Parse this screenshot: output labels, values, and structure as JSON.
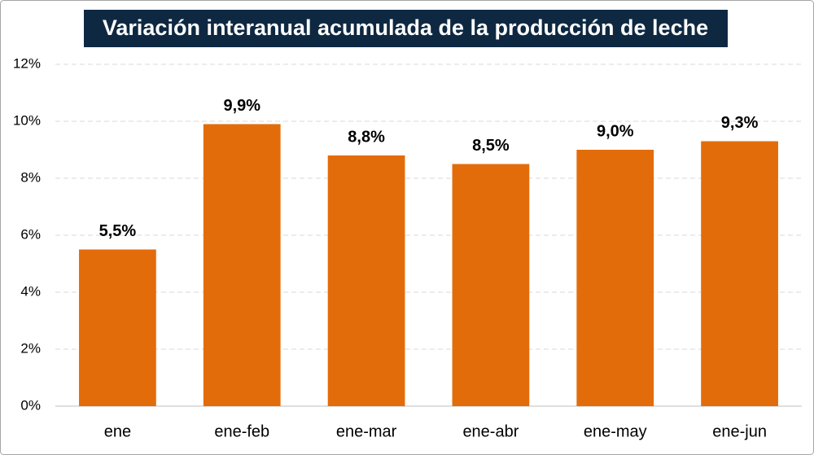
{
  "chart_data": {
    "type": "bar",
    "title": "Variación interanual acumulada de la producción de leche",
    "categories": [
      "ene",
      "ene-feb",
      "ene-mar",
      "ene-abr",
      "ene-may",
      "ene-jun"
    ],
    "values": [
      5.5,
      9.9,
      8.8,
      8.5,
      9.0,
      9.3
    ],
    "value_labels": [
      "5,5%",
      "9,9%",
      "8,8%",
      "8,5%",
      "9,0%",
      "9,3%"
    ],
    "color": "#e36c0a",
    "ylim": [
      0,
      12
    ],
    "yticks": [
      {
        "value": 0,
        "label": "0%"
      },
      {
        "value": 2,
        "label": "2%"
      },
      {
        "value": 4,
        "label": "4%"
      },
      {
        "value": 6,
        "label": "6%"
      },
      {
        "value": 8,
        "label": "8%"
      },
      {
        "value": 10,
        "label": "10%"
      },
      {
        "value": 12,
        "label": "12%"
      }
    ],
    "grid": true
  }
}
